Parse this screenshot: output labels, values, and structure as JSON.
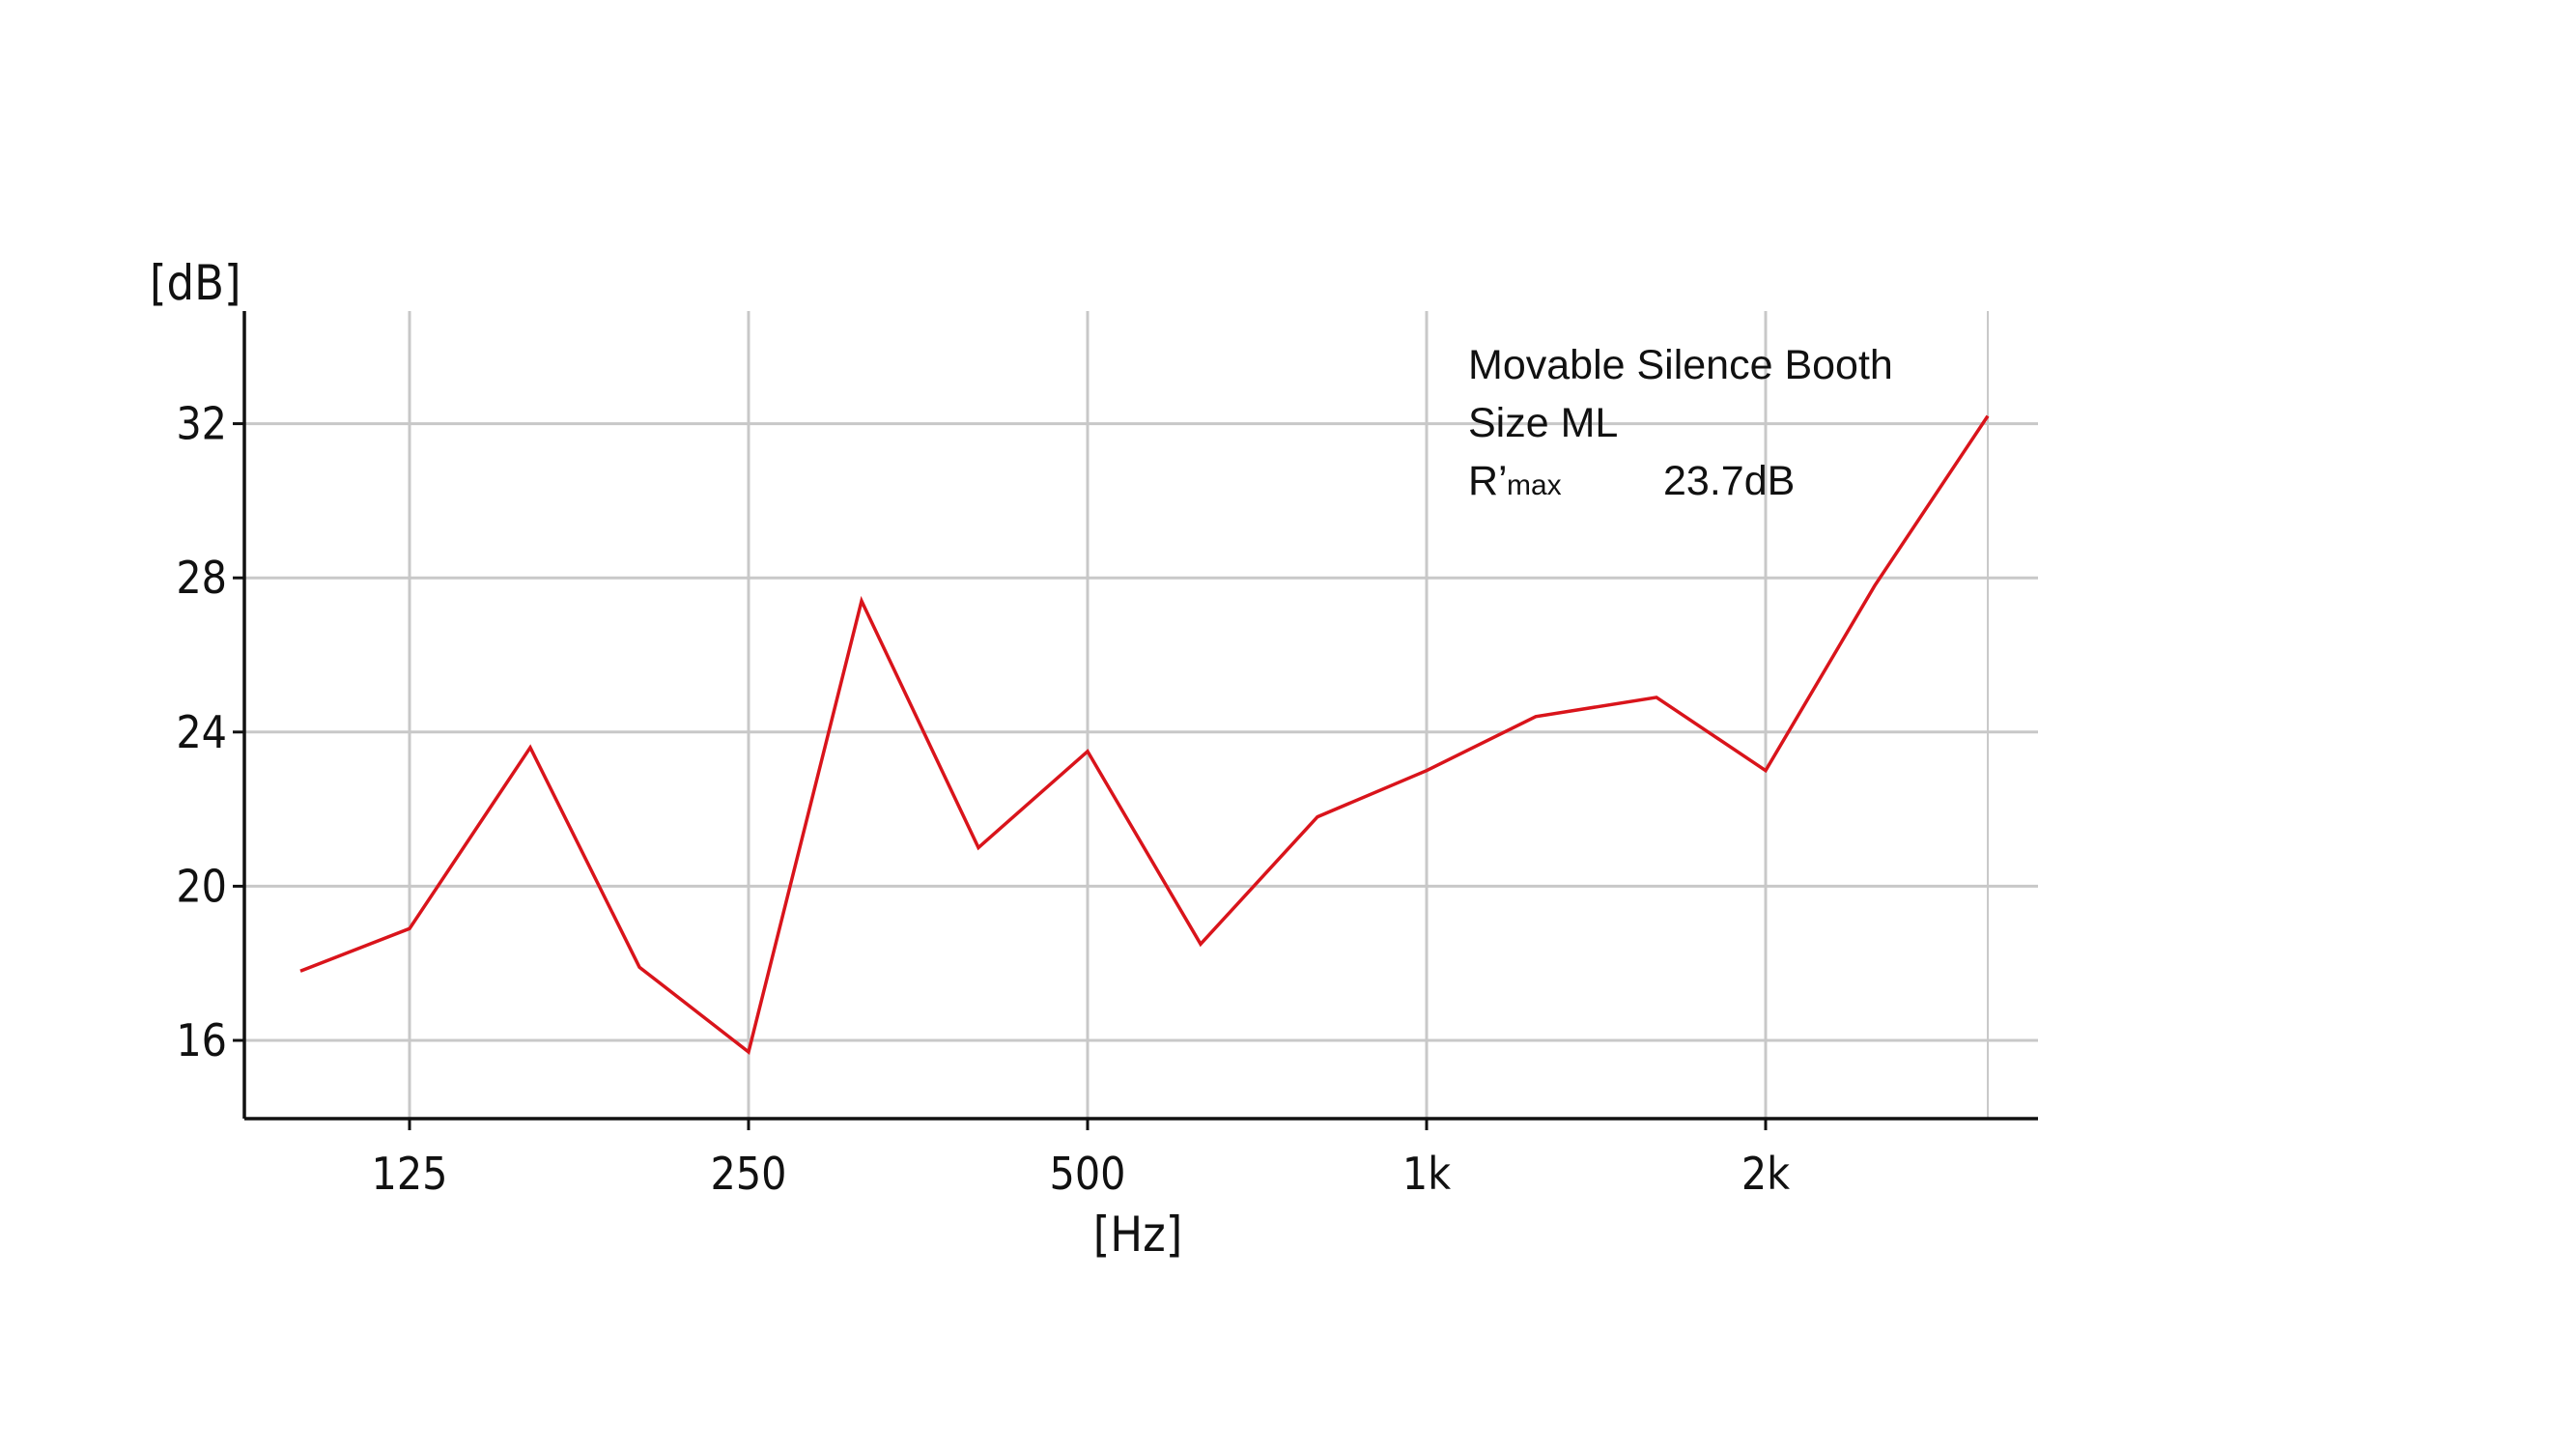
{
  "chart_data": {
    "type": "line",
    "title": "",
    "xlabel": "[Hz]",
    "ylabel": "[dB]",
    "x_scale": "log",
    "x_tick_labels": [
      "125",
      "250",
      "500",
      "1k",
      "2k"
    ],
    "x_tick_values": [
      125,
      250,
      500,
      1000,
      2000
    ],
    "y_ticks": [
      16,
      20,
      24,
      28,
      32
    ],
    "ylim": [
      14,
      35
    ],
    "grid": true,
    "series": [
      {
        "color": "#d9141b",
        "x": [
          100,
          125,
          160,
          200,
          250,
          315,
          400,
          500,
          630,
          800,
          1000,
          1250,
          1600,
          2000,
          2500,
          3150
        ],
        "values": [
          17.8,
          18.9,
          23.6,
          17.9,
          15.7,
          27.4,
          21.0,
          23.5,
          18.5,
          21.8,
          23.0,
          24.4,
          24.9,
          23.0,
          27.8,
          32.2
        ]
      }
    ],
    "annotations": {
      "line1": "Movable Silence Booth",
      "line2": "Size ML",
      "rmax_label": "R’",
      "rmax_sub": "max",
      "rmax_value": "23.7dB"
    }
  }
}
